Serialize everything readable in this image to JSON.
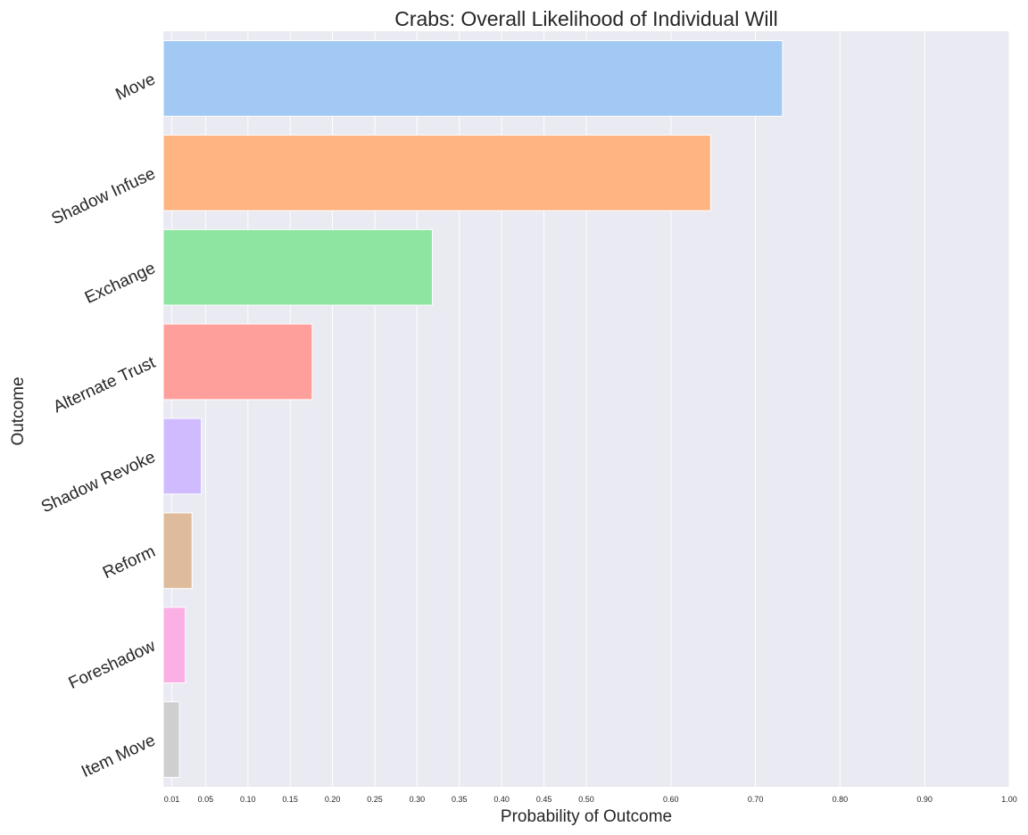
{
  "chart_data": {
    "type": "bar",
    "orientation": "horizontal",
    "title": "Crabs: Overall Likelihood of Individual Will",
    "xlabel": "Probability of Outcome",
    "ylabel": "Outcome",
    "xlim": [
      0,
      1.0
    ],
    "x_ticks": [
      0.01,
      0.05,
      0.1,
      0.15,
      0.2,
      0.25,
      0.3,
      0.35,
      0.4,
      0.45,
      0.5,
      0.6,
      0.7,
      0.8,
      0.9,
      1.0
    ],
    "x_tick_labels": [
      "0.01",
      "0.05",
      "0.10",
      "0.15",
      "0.20",
      "0.25",
      "0.30",
      "0.35",
      "0.40",
      "0.45",
      "0.50",
      "0.60",
      "0.70",
      "0.80",
      "0.90",
      "1.00"
    ],
    "categories": [
      "Move",
      "Shadow Infuse",
      "Exchange",
      "Alternate Trust",
      "Shadow Revoke",
      "Reform",
      "Foreshadow",
      "Item Move"
    ],
    "values": [
      0.732,
      0.647,
      0.318,
      0.176,
      0.045,
      0.034,
      0.026,
      0.019
    ],
    "colors": [
      "#a1c9f4",
      "#ffb482",
      "#8de5a1",
      "#ff9f9b",
      "#d0bbff",
      "#debb9b",
      "#fab0e4",
      "#cfcfcf"
    ],
    "background": "#eaeaf2",
    "grid": true,
    "grid_axis": "x",
    "grid_color": "#ffffff",
    "legend": "none"
  }
}
